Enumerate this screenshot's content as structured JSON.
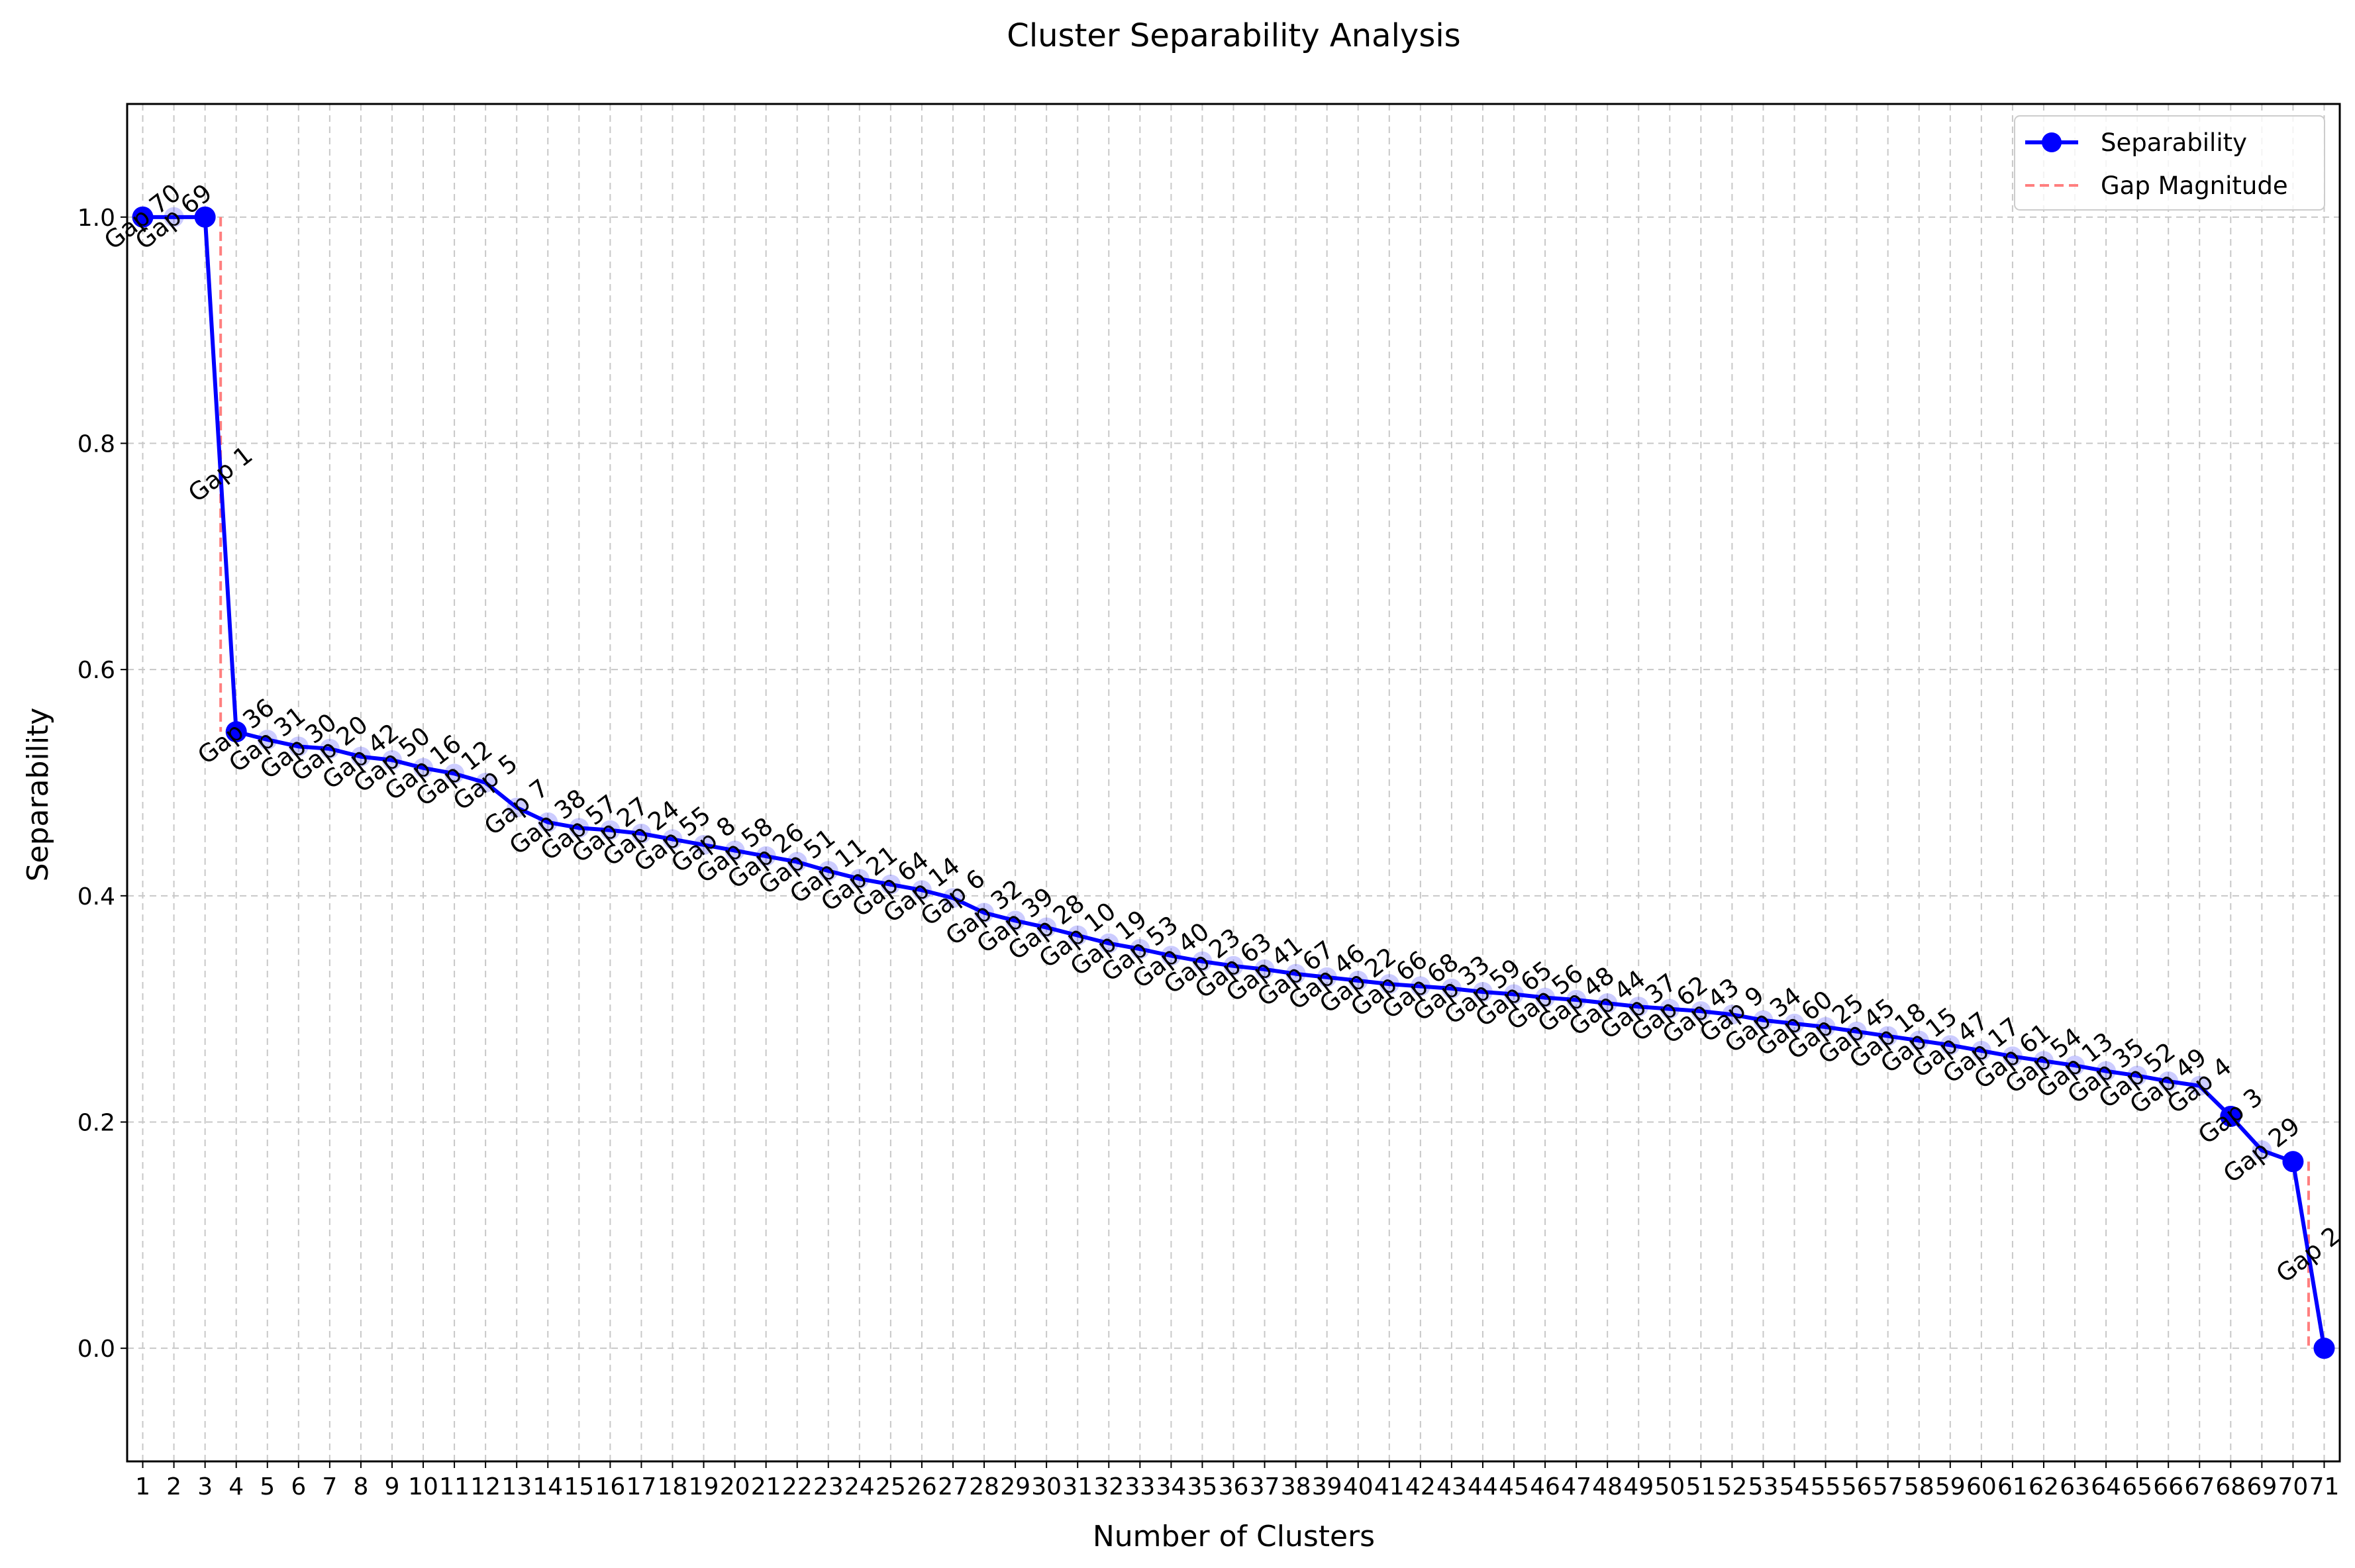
{
  "chart_data": {
    "type": "line",
    "title": "Cluster Separability Analysis",
    "xlabel": "Number of Clusters",
    "ylabel": "Separability",
    "xlim": [
      0.5,
      71.5
    ],
    "ylim": [
      -0.1,
      1.1
    ],
    "yticks": [
      0.0,
      0.2,
      0.4,
      0.6,
      0.8,
      1.0
    ],
    "ytick_labels": [
      "0.0",
      "0.2",
      "0.4",
      "0.6",
      "0.8",
      "1.0"
    ],
    "grid": true,
    "legend_position": "top-right",
    "colors": {
      "line": "#0000ff",
      "gap": "#ff7f7f",
      "grid": "#c8c8c8"
    },
    "x": [
      1,
      2,
      3,
      4,
      5,
      6,
      7,
      8,
      9,
      10,
      11,
      12,
      13,
      14,
      15,
      16,
      17,
      18,
      19,
      20,
      21,
      22,
      23,
      24,
      25,
      26,
      27,
      28,
      29,
      30,
      31,
      32,
      33,
      34,
      35,
      36,
      37,
      38,
      39,
      40,
      41,
      42,
      43,
      44,
      45,
      46,
      47,
      48,
      49,
      50,
      51,
      52,
      53,
      54,
      55,
      56,
      57,
      58,
      59,
      60,
      61,
      62,
      63,
      64,
      65,
      66,
      67,
      68,
      69,
      70,
      71
    ],
    "series": [
      {
        "name": "Separability",
        "values": [
          1.0,
          1.0,
          1.0,
          0.545,
          0.538,
          0.532,
          0.53,
          0.523,
          0.52,
          0.513,
          0.508,
          0.5,
          0.478,
          0.465,
          0.46,
          0.458,
          0.455,
          0.45,
          0.445,
          0.44,
          0.435,
          0.43,
          0.422,
          0.415,
          0.41,
          0.405,
          0.398,
          0.385,
          0.378,
          0.372,
          0.365,
          0.358,
          0.353,
          0.347,
          0.342,
          0.338,
          0.335,
          0.331,
          0.328,
          0.325,
          0.322,
          0.32,
          0.318,
          0.315,
          0.313,
          0.31,
          0.308,
          0.305,
          0.302,
          0.3,
          0.298,
          0.295,
          0.29,
          0.287,
          0.284,
          0.28,
          0.276,
          0.272,
          0.268,
          0.263,
          0.258,
          0.254,
          0.25,
          0.245,
          0.241,
          0.236,
          0.232,
          0.205,
          0.175,
          0.165,
          0.0
        ]
      }
    ],
    "gaps": [
      {
        "name": "Gap Magnitude",
        "x": 3.5,
        "y_top": 1.0,
        "y_bottom": 0.545
      },
      {
        "name": "Gap Magnitude",
        "x": 70.5,
        "y_top": 0.165,
        "y_bottom": 0.0
      }
    ],
    "gap_labels": [
      "Gap 70",
      "Gap 69",
      "Gap 1",
      "Gap 36",
      "Gap 31",
      "Gap 30",
      "Gap 20",
      "Gap 42",
      "Gap 50",
      "Gap 16",
      "Gap 12",
      "Gap 5",
      "Gap 7",
      "Gap 38",
      "Gap 57",
      "Gap 27",
      "Gap 24",
      "Gap 55",
      "Gap 8",
      "Gap 58",
      "Gap 26",
      "Gap 51",
      "Gap 11",
      "Gap 21",
      "Gap 64",
      "Gap 14",
      "Gap 6",
      "Gap 32",
      "Gap 39",
      "Gap 28",
      "Gap 10",
      "Gap 19",
      "Gap 53",
      "Gap 40",
      "Gap 23",
      "Gap 63",
      "Gap 41",
      "Gap 67",
      "Gap 46",
      "Gap 22",
      "Gap 66",
      "Gap 68",
      "Gap 33",
      "Gap 59",
      "Gap 65",
      "Gap 56",
      "Gap 48",
      "Gap 44",
      "Gap 37",
      "Gap 62",
      "Gap 43",
      "Gap 9",
      "Gap 34",
      "Gap 60",
      "Gap 25",
      "Gap 45",
      "Gap 18",
      "Gap 15",
      "Gap 47",
      "Gap 17",
      "Gap 61",
      "Gap 54",
      "Gap 13",
      "Gap 35",
      "Gap 52",
      "Gap 49",
      "Gap 4",
      "Gap 3",
      "Gap 29",
      "Gap 2"
    ],
    "gap_label_x": [
      1,
      2,
      3.5,
      4,
      5,
      6,
      7,
      8,
      9,
      10,
      11,
      12,
      13,
      14,
      15,
      16,
      17,
      18,
      19,
      20,
      21,
      22,
      23,
      24,
      25,
      26,
      27,
      28,
      29,
      30,
      31,
      32,
      33,
      34,
      35,
      36,
      37,
      38,
      39,
      40,
      41,
      42,
      43,
      44,
      45,
      46,
      47,
      48,
      49,
      50,
      51,
      52,
      53,
      54,
      55,
      56,
      57,
      58,
      59,
      60,
      61,
      62,
      63,
      64,
      65,
      66,
      67,
      68,
      69,
      70.5
    ],
    "gap_label_y": [
      1.0,
      1.0,
      0.7725,
      0.545,
      0.538,
      0.532,
      0.53,
      0.523,
      0.52,
      0.513,
      0.508,
      0.5,
      0.478,
      0.465,
      0.46,
      0.458,
      0.455,
      0.45,
      0.445,
      0.44,
      0.435,
      0.43,
      0.422,
      0.415,
      0.41,
      0.405,
      0.398,
      0.385,
      0.378,
      0.372,
      0.365,
      0.358,
      0.353,
      0.347,
      0.342,
      0.338,
      0.335,
      0.331,
      0.328,
      0.325,
      0.322,
      0.32,
      0.318,
      0.315,
      0.313,
      0.31,
      0.308,
      0.305,
      0.302,
      0.3,
      0.298,
      0.295,
      0.29,
      0.287,
      0.284,
      0.28,
      0.276,
      0.272,
      0.268,
      0.263,
      0.258,
      0.254,
      0.25,
      0.245,
      0.241,
      0.236,
      0.232,
      0.205,
      0.175,
      0.0825
    ],
    "highlighted_markers": [
      1,
      3,
      4,
      68,
      70,
      71
    ],
    "legend": [
      "Separability",
      "Gap Magnitude"
    ]
  }
}
